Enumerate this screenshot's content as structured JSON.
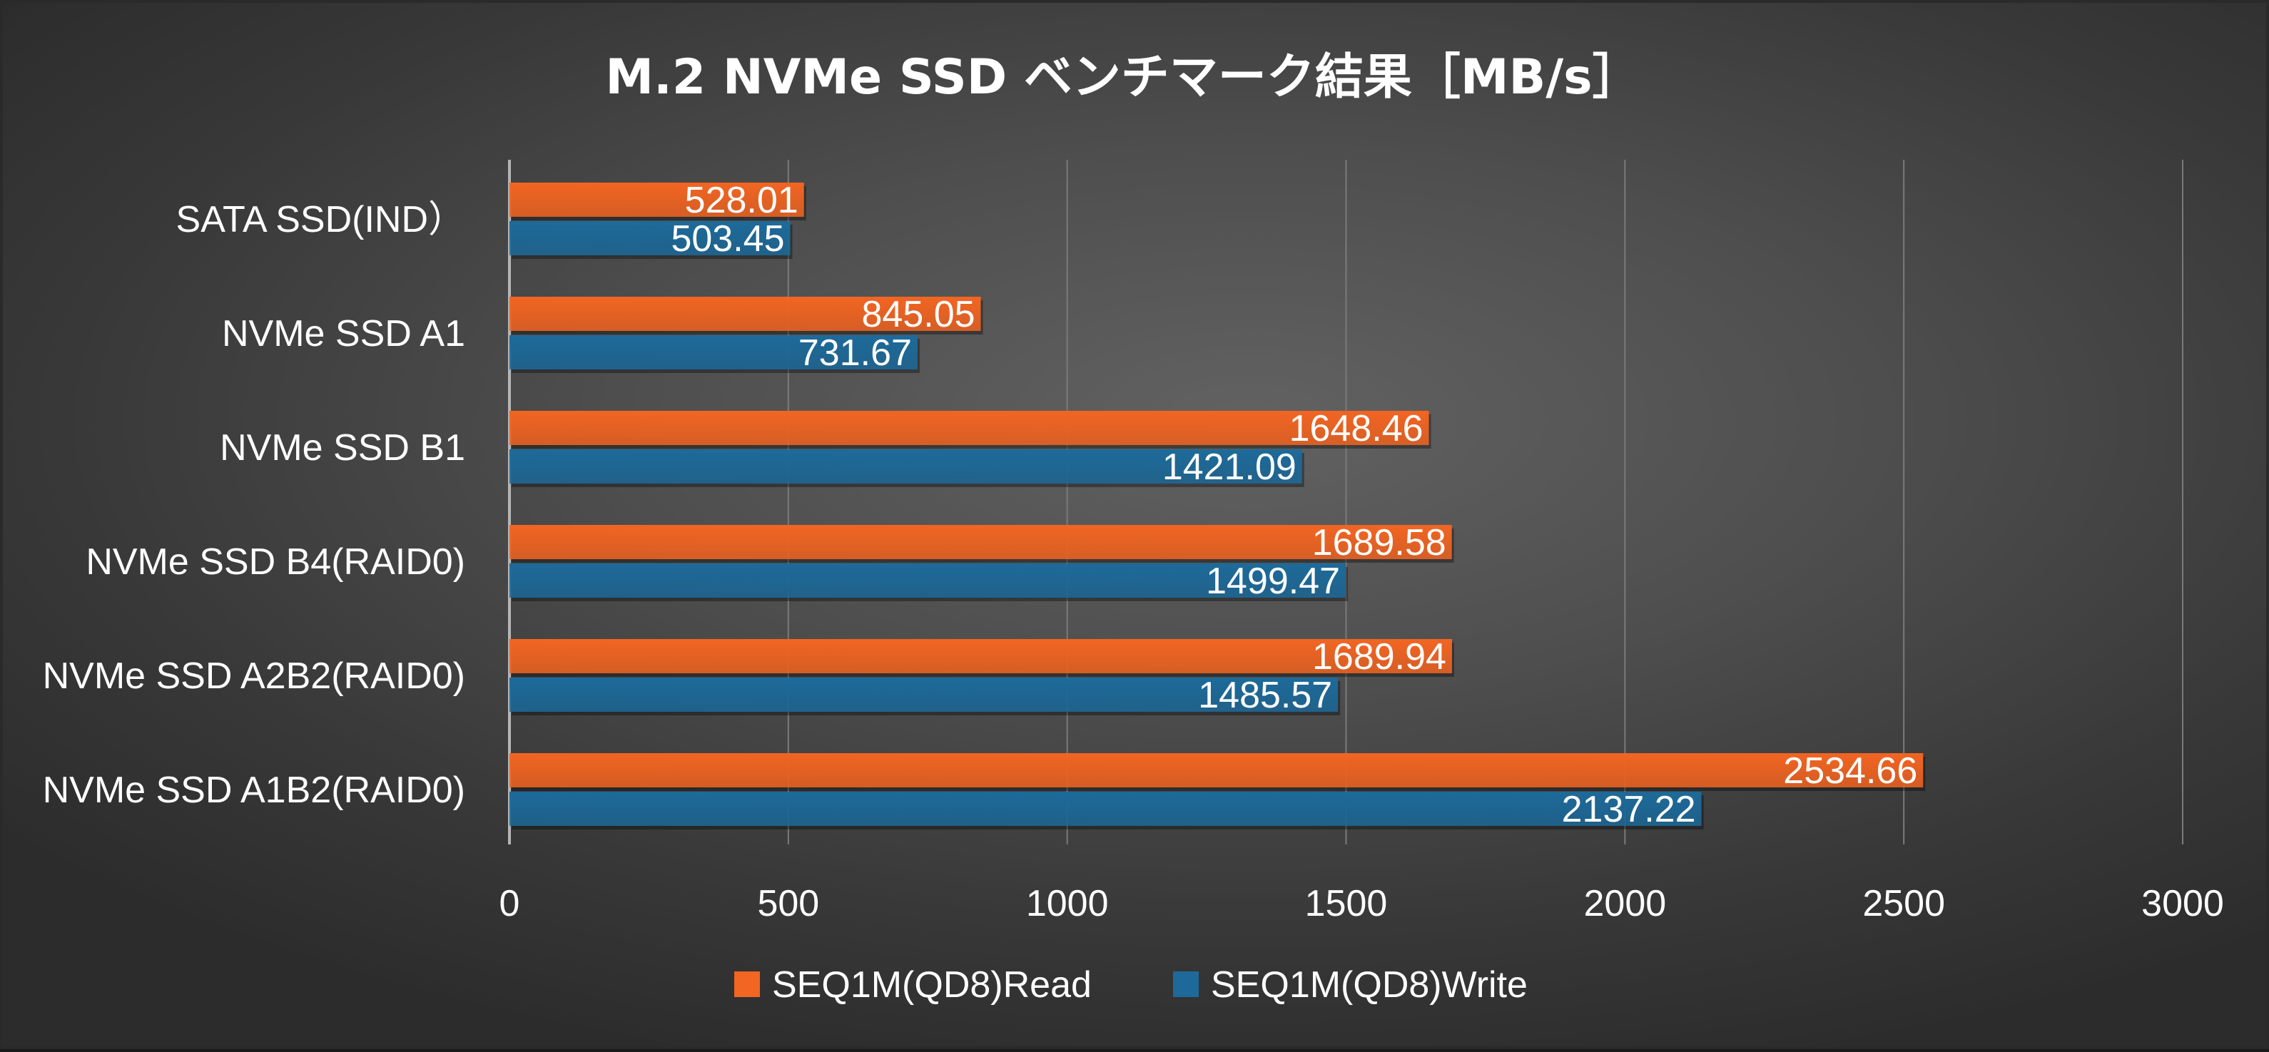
{
  "chart_data": {
    "type": "bar",
    "orientation": "horizontal",
    "title": "M.2 NVMe SSD ベンチマーク結果［MB/s］",
    "categories": [
      "SATA SSD(IND）",
      "NVMe SSD A1",
      "NVMe SSD B1",
      "NVMe SSD B4(RAID0)",
      "NVMe SSD A2B2(RAID0)",
      "NVMe SSD A1B2(RAID0)"
    ],
    "series": [
      {
        "name": "SEQ1M(QD8)Read",
        "color": "#f26522",
        "values": [
          528.01,
          845.05,
          1648.46,
          1689.58,
          1689.94,
          2534.66
        ],
        "labels": [
          "528.01",
          "845.05",
          "1648.46",
          "1689.58",
          "1689.94",
          "2534.66"
        ]
      },
      {
        "name": "SEQ1M(QD8)Write",
        "color": "#1d6a9a",
        "values": [
          503.45,
          731.67,
          1421.09,
          1499.47,
          1485.57,
          2137.22
        ],
        "labels": [
          "503.45",
          "731.67",
          "1421.09",
          "1499.47",
          "1485.57",
          "2137.22"
        ]
      }
    ],
    "xlim": [
      0,
      3000
    ],
    "xticks": [
      0,
      500,
      1000,
      1500,
      2000,
      2500,
      3000
    ],
    "xtick_labels": [
      "0",
      "500",
      "1000",
      "1500",
      "2000",
      "2500",
      "3000"
    ],
    "grid": true,
    "legend_position": "bottom",
    "background": "dark gradient"
  }
}
